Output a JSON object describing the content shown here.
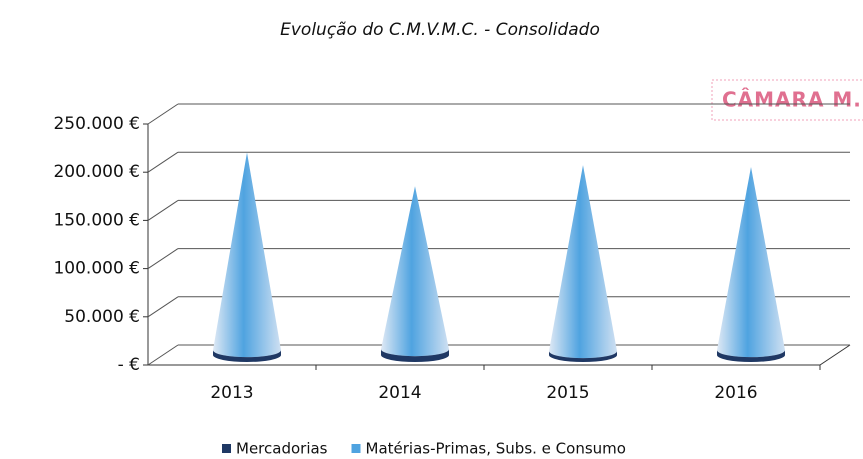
{
  "chart_data": {
    "type": "cone",
    "title": "Evolução do C.M.V.M.C. - Consolidado",
    "stamp": "CÂMARA M.",
    "categories": [
      "2013",
      "2014",
      "2015",
      "2016"
    ],
    "series": [
      {
        "name": "Mercadorias",
        "color": "#1f3864",
        "values": [
          5000,
          6000,
          4000,
          5000
        ]
      },
      {
        "name": "Matérias-Primas, Subs. e Consumo",
        "color": "#4fa3e0",
        "values": [
          205000,
          169000,
          193000,
          190000
        ]
      }
    ],
    "ylim": [
      0,
      250000
    ],
    "yticks": [
      {
        "value": 0,
        "label": "- €"
      },
      {
        "value": 50000,
        "label": "50.000 €"
      },
      {
        "value": 100000,
        "label": "100.000 €"
      },
      {
        "value": 150000,
        "label": "150.000 €"
      },
      {
        "value": 200000,
        "label": "200.000 €"
      },
      {
        "value": 250000,
        "label": "250.000 €"
      }
    ],
    "grid": true
  }
}
